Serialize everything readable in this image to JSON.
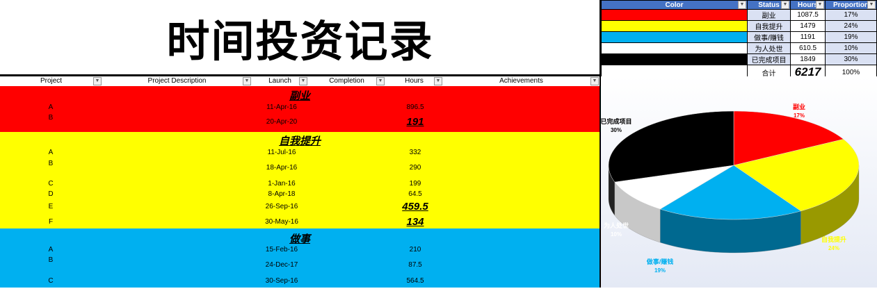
{
  "title": "时间投资记录",
  "columns": [
    "Project",
    "Project Description",
    "Launch",
    "Completion",
    "Hours",
    "Achievements"
  ],
  "sections": [
    {
      "name": "副业",
      "color": "#ff0000",
      "rows": [
        {
          "project": "A",
          "launch": "11-Apr-16",
          "hours": "896.5"
        },
        {
          "project": "B",
          "launch": "20-Apr-20",
          "hours": "191"
        }
      ]
    },
    {
      "name": "自我提升",
      "color": "#ffff00",
      "rows": [
        {
          "project": "A",
          "launch": "11-Jul-16",
          "hours": "332"
        },
        {
          "project": "B",
          "launch": "18-Apr-16",
          "hours": "290"
        },
        {
          "project": "C",
          "launch": "1-Jan-16",
          "hours": "199"
        },
        {
          "project": "D",
          "launch": "8-Apr-18",
          "hours": "64.5"
        },
        {
          "project": "E",
          "launch": "26-Sep-16",
          "hours": "459.5"
        },
        {
          "project": "F",
          "launch": "30-May-16",
          "hours": "134"
        }
      ]
    },
    {
      "name": "做事",
      "color": "#00b0f0",
      "rows": [
        {
          "project": "A",
          "launch": "15-Feb-16",
          "hours": "210"
        },
        {
          "project": "B",
          "launch": "24-Dec-17",
          "hours": "87.5"
        },
        {
          "project": "C",
          "launch": "30-Sep-16",
          "hours": "564.5"
        }
      ]
    }
  ],
  "summary": {
    "headers": [
      "Color",
      "Status",
      "Hours",
      "Proportion"
    ],
    "rows": [
      {
        "color": "#ff0000",
        "status": "副业",
        "hours": "1087.5",
        "prop": "17%"
      },
      {
        "color": "#ffff00",
        "status": "自我提升",
        "hours": "1479",
        "prop": "24%"
      },
      {
        "color": "#00b0f0",
        "status": "做事/赚钱",
        "hours": "1191",
        "prop": "19%"
      },
      {
        "color": "#ffffff",
        "status": "为人处世",
        "hours": "610.5",
        "prop": "10%"
      },
      {
        "color": "#000000",
        "status": "已完成项目",
        "hours": "1849",
        "prop": "30%"
      }
    ],
    "total_label": "合计",
    "total_hours": "6217",
    "total_prop": "100%"
  },
  "chart_data": {
    "type": "pie",
    "categories": [
      "副业",
      "自我提升",
      "做事/赚钱",
      "为人处世",
      "已完成项目"
    ],
    "values": [
      17,
      24,
      19,
      10,
      30
    ],
    "labels": [
      "17%",
      "24%",
      "19%",
      "10%",
      "30%"
    ],
    "colors": [
      "#ff0000",
      "#ffff00",
      "#00b0f0",
      "#ffffff",
      "#000000"
    ],
    "label_colors": [
      "#ff0000",
      "#ffff00",
      "#00b0f0",
      "#ffffff",
      "#000000"
    ]
  }
}
